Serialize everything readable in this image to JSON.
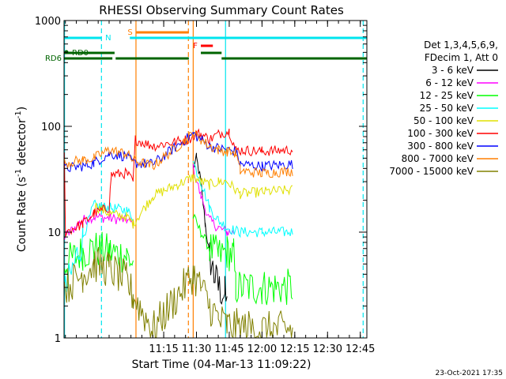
{
  "chart_data": {
    "type": "line",
    "title": "RHESSI Observing Summary Count Rates",
    "xlabel": "Start Time (04-Mar-13 11:09:22)",
    "ylabel_main": "Count Rate (s",
    "ylabel_sup1": "-1",
    "ylabel_mid": " detector",
    "ylabel_sup2": "-1",
    "ylabel_end": ")",
    "y_scale": "log",
    "ylim": [
      1,
      1000
    ],
    "xlim_minutes": [
      1109.37,
      1248.0
    ],
    "x_ticks": [
      {
        "label": "11:15",
        "minutes": 1155
      },
      {
        "label": "11:30",
        "minutes": 1170
      },
      {
        "label": "11:45",
        "minutes": 1185
      },
      {
        "label": "12:00",
        "minutes": 1200
      },
      {
        "label": "12:15",
        "minutes": 1215
      },
      {
        "label": "12:30",
        "minutes": 1230
      },
      {
        "label": "12:45",
        "minutes": 1245
      }
    ],
    "y_ticks": [
      {
        "label": "1",
        "value": 1
      },
      {
        "label": "10",
        "value": 10
      },
      {
        "label": "100",
        "value": 100
      },
      {
        "label": "1000",
        "value": 1000
      }
    ],
    "legend_header": [
      "Det 1,3,4,5,6,9,",
      "FDecim 1, Att 0"
    ],
    "legend_placement": "right",
    "timestamp": "23-Oct-2021 17:35",
    "flags": [
      {
        "label": "N",
        "color": "#00e5ee",
        "segments": [
          [
            1109.4,
            1126.5
          ],
          [
            1139.5,
            1248
          ]
        ]
      },
      {
        "label": "S",
        "color": "#ff7f00",
        "segments": [
          [
            1142.5,
            1166.5
          ]
        ]
      },
      {
        "label": "F",
        "color": "#ff0000",
        "segments": [
          [
            1172,
            1177.5
          ]
        ]
      },
      {
        "label": "RD0",
        "color": "#006400",
        "segments": [
          [
            1109.4,
            1132.5
          ],
          [
            1172,
            1181.5
          ]
        ]
      },
      {
        "label": "RD6",
        "color": "#006400",
        "segments": [
          [
            1109.4,
            1131.5
          ],
          [
            1133,
            1166.5
          ],
          [
            1181.5,
            1248
          ]
        ]
      }
    ],
    "vlines": [
      {
        "minutes": 1109.6,
        "color": "#00e5ee",
        "style": "solid"
      },
      {
        "minutes": 1126.5,
        "color": "#00e5ee",
        "style": "dashed"
      },
      {
        "minutes": 1142.3,
        "color": "#ff7f00",
        "style": "solid"
      },
      {
        "minutes": 1166.3,
        "color": "#ff7f00",
        "style": "dashed"
      },
      {
        "minutes": 1168.5,
        "color": "#ff7f00",
        "style": "solid"
      },
      {
        "minutes": 1183.3,
        "color": "#00e5ee",
        "style": "solid"
      },
      {
        "minutes": 1246.3,
        "color": "#00e5ee",
        "style": "dashed"
      }
    ],
    "series": [
      {
        "name": "3 - 6 keV",
        "color": "#000000",
        "points": [
          [
            1168.5,
            40
          ],
          [
            1170,
            50
          ],
          [
            1172,
            30
          ],
          [
            1174,
            12
          ],
          [
            1176,
            6
          ],
          [
            1178,
            4
          ],
          [
            1180,
            3
          ],
          [
            1183,
            2.6
          ],
          [
            1184,
            2
          ]
        ]
      },
      {
        "name": "6 - 12 keV",
        "color": "#ff00ff",
        "points": [
          [
            1109.5,
            9
          ],
          [
            1118,
            13
          ],
          [
            1123,
            14
          ],
          [
            1130,
            13.5
          ],
          [
            1138,
            13
          ],
          [
            1141,
            12
          ],
          [
            1168.5,
            40
          ],
          [
            1172,
            22
          ],
          [
            1176,
            13
          ],
          [
            1180,
            11
          ],
          [
            1184,
            10
          ],
          [
            1187,
            10
          ]
        ]
      },
      {
        "name": "12 - 25 keV",
        "color": "#00ff00",
        "points": [
          [
            1109.5,
            5
          ],
          [
            1118,
            6.5
          ],
          [
            1123,
            7
          ],
          [
            1130,
            6.5
          ],
          [
            1138,
            6
          ],
          [
            1141,
            5
          ],
          [
            1168.5,
            14
          ],
          [
            1172,
            10
          ],
          [
            1176,
            7
          ],
          [
            1180,
            6
          ],
          [
            1184,
            6.5
          ],
          [
            1187,
            6
          ],
          [
            1188,
            3
          ],
          [
            1200,
            3
          ],
          [
            1214,
            3
          ]
        ]
      },
      {
        "name": "25 - 50 keV",
        "color": "#00ffff",
        "points": [
          [
            1109.5,
            2.5
          ],
          [
            1118,
            9
          ],
          [
            1123,
            18
          ],
          [
            1130,
            17
          ],
          [
            1138,
            16
          ],
          [
            1141,
            14
          ],
          [
            1168.5,
            46
          ],
          [
            1172,
            30
          ],
          [
            1176,
            17
          ],
          [
            1180,
            13
          ],
          [
            1184,
            11
          ],
          [
            1190,
            10
          ],
          [
            1200,
            10
          ],
          [
            1214,
            10
          ]
        ]
      },
      {
        "name": "50 - 100 keV",
        "color": "#e0e000",
        "points": [
          [
            1123,
            18
          ],
          [
            1130,
            15
          ],
          [
            1138,
            14
          ],
          [
            1141,
            12
          ],
          [
            1150,
            22
          ],
          [
            1168.5,
            33
          ],
          [
            1172,
            30
          ],
          [
            1176,
            28
          ],
          [
            1180,
            30
          ],
          [
            1184,
            30
          ],
          [
            1190,
            23
          ],
          [
            1200,
            24
          ],
          [
            1214,
            25
          ]
        ]
      },
      {
        "name": "100 - 300 keV",
        "color": "#ff0000",
        "points": [
          [
            1109.5,
            60
          ],
          [
            1110,
            10
          ],
          [
            1118,
            12
          ],
          [
            1123,
            15
          ],
          [
            1130,
            17
          ],
          [
            1131,
            35
          ],
          [
            1138,
            36
          ],
          [
            1141,
            30
          ],
          [
            1142,
            75
          ],
          [
            1150,
            65
          ],
          [
            1166,
            75
          ],
          [
            1170,
            85
          ],
          [
            1172,
            85
          ],
          [
            1176,
            75
          ],
          [
            1180,
            85
          ],
          [
            1185,
            90
          ],
          [
            1188,
            60
          ],
          [
            1200,
            58
          ],
          [
            1214,
            60
          ]
        ]
      },
      {
        "name": "300 - 800 keV",
        "color": "#0000ff",
        "points": [
          [
            1109.5,
            40
          ],
          [
            1118,
            42
          ],
          [
            1123,
            45
          ],
          [
            1130,
            55
          ],
          [
            1138,
            52
          ],
          [
            1141,
            45
          ],
          [
            1150,
            44
          ],
          [
            1168.5,
            85
          ],
          [
            1172,
            75
          ],
          [
            1176,
            65
          ],
          [
            1180,
            62
          ],
          [
            1184,
            60
          ],
          [
            1188,
            58
          ],
          [
            1190,
            44
          ],
          [
            1200,
            42
          ],
          [
            1214,
            44
          ]
        ]
      },
      {
        "name": "800 - 7000 keV",
        "color": "#ff7f00",
        "points": [
          [
            1109.5,
            45
          ],
          [
            1118,
            48
          ],
          [
            1123,
            50
          ],
          [
            1130,
            60
          ],
          [
            1138,
            55
          ],
          [
            1141,
            48
          ],
          [
            1150,
            42
          ],
          [
            1168.5,
            85
          ],
          [
            1172,
            75
          ],
          [
            1176,
            65
          ],
          [
            1180,
            60
          ],
          [
            1184,
            58
          ],
          [
            1188,
            56
          ],
          [
            1190,
            38
          ],
          [
            1200,
            36
          ],
          [
            1214,
            38
          ]
        ]
      },
      {
        "name": "7000 - 15000 keV",
        "color": "#808000",
        "points": [
          [
            1109.5,
            3
          ],
          [
            1118,
            4
          ],
          [
            1123,
            5
          ],
          [
            1130,
            4.5
          ],
          [
            1138,
            3.5
          ],
          [
            1141,
            2.5
          ],
          [
            1150,
            1.2
          ],
          [
            1168.5,
            4
          ],
          [
            1172,
            3
          ],
          [
            1176,
            2
          ],
          [
            1180,
            1.5
          ],
          [
            1184,
            1.3
          ],
          [
            1200,
            1.2
          ],
          [
            1214,
            1.2
          ]
        ]
      }
    ]
  }
}
